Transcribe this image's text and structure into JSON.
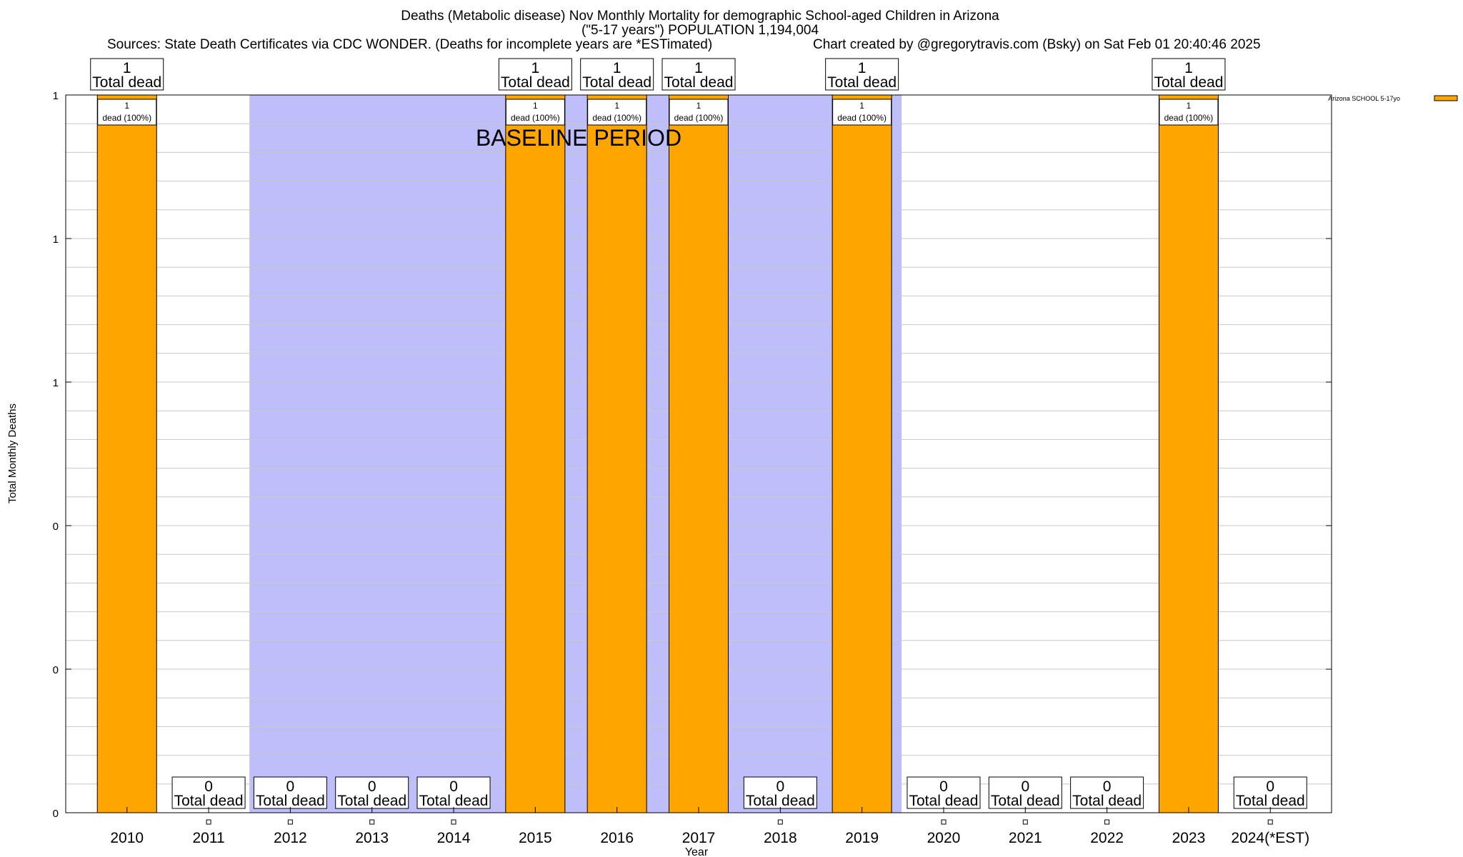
{
  "header": {
    "title_line1": "Deaths (Metabolic disease) Nov Monthly Mortality for demographic School-aged Children in Arizona",
    "title_line2": "(\"5-17 years\") POPULATION 1,194,004",
    "sources": "Sources: State Death Certificates via CDC WONDER. (Deaths for incomplete years are *ESTimated)",
    "credit": "Chart created by @gregorytravis.com (Bsky) on Sat Feb 01 20:40:46 2025"
  },
  "colors": {
    "bar": "#ffa500",
    "baseline": "#bebefa",
    "grid": "#c8c8c8"
  },
  "chart_data": {
    "type": "bar",
    "xlabel": "Year",
    "ylabel": "Total Monthly Deaths",
    "ylim": [
      0,
      1
    ],
    "y_tick_labels": [
      "0",
      "0",
      "0",
      "1",
      "1",
      "1"
    ],
    "grid": true,
    "legend_position": "top-right",
    "baseline_label": "BASELINE PERIOD",
    "baseline_range": [
      "2012",
      "2019"
    ],
    "categories": [
      "2010",
      "2011",
      "2012",
      "2013",
      "2014",
      "2015",
      "2016",
      "2017",
      "2018",
      "2019",
      "2020",
      "2021",
      "2022",
      "2023",
      "2024(*EST)"
    ],
    "series": [
      {
        "name": "Arizona SCHOOL 5-17yo",
        "values": [
          1,
          0,
          0,
          0,
          0,
          1,
          1,
          1,
          0,
          1,
          0,
          0,
          0,
          1,
          0
        ]
      }
    ],
    "total_label_suffix": "Total dead",
    "inner_labels": [
      "1",
      "",
      "",
      "",
      "",
      "1",
      "1",
      "1",
      "",
      "1",
      "",
      "",
      "",
      "1",
      ""
    ],
    "inner_label_sub": "dead (100%)"
  }
}
